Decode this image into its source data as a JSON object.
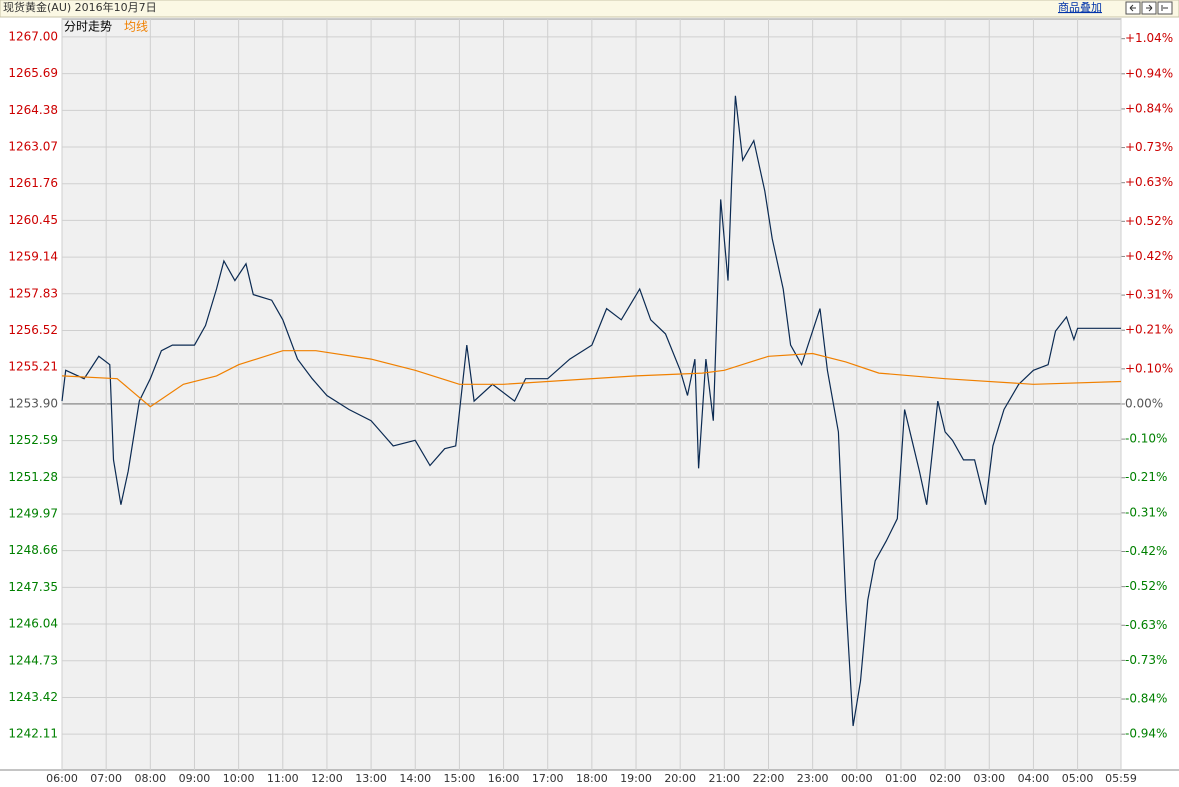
{
  "header": {
    "title": "现货黄金(AU) 2016年10月7日",
    "overlay_button": "商品叠加"
  },
  "chart_data": {
    "type": "line",
    "up_color": "#cc0000",
    "down_color": "#008000",
    "flat_color": "#555555",
    "ylim": [
      1240.83,
      1267.64
    ],
    "yticks": [
      {
        "value": 1267,
        "label": "1267.00"
      },
      1265.69,
      1264.38,
      1263.07,
      1261.76,
      1260.45,
      1259.14,
      1257.83,
      1256.52,
      1255.21,
      {
        "value": 1253.9,
        "label": "1253.90"
      },
      1252.59,
      1251.28,
      1249.97,
      1248.66,
      1247.35,
      1246.04,
      1244.73,
      1243.42,
      1242.11
    ],
    "y2lim": [
      -1.042,
      1.096
    ],
    "y2ticks": [
      {
        "value": 1.04,
        "label": "+1.04%"
      },
      {
        "value": 0.94,
        "label": "+0.94%"
      },
      {
        "value": 0.84,
        "label": "+0.84%"
      },
      {
        "value": 0.73,
        "label": "+0.73%"
      },
      {
        "value": 0.63,
        "label": "+0.63%"
      },
      {
        "value": 0.52,
        "label": "+0.52%"
      },
      {
        "value": 0.42,
        "label": "+0.42%"
      },
      {
        "value": 0.31,
        "label": "+0.31%"
      },
      {
        "value": 0.21,
        "label": "+0.21%"
      },
      {
        "value": 0.1,
        "label": "+0.10%"
      },
      {
        "value": 0,
        "label": "0.00%"
      },
      {
        "value": -0.1,
        "label": "-0.10%"
      },
      {
        "value": -0.21,
        "label": "-0.21%"
      },
      {
        "value": -0.31,
        "label": "-0.31%"
      },
      {
        "value": -0.42,
        "label": "-0.42%"
      },
      {
        "value": -0.52,
        "label": "-0.52%"
      },
      {
        "value": -0.63,
        "label": "-0.63%"
      },
      {
        "value": -0.73,
        "label": "-0.73%"
      },
      {
        "value": -0.84,
        "label": "-0.84%"
      },
      {
        "value": -0.94,
        "label": "-0.94%"
      }
    ],
    "xticks": [
      "06:00",
      "07:00",
      "08:00",
      "09:00",
      "10:00",
      "11:00",
      "12:00",
      "13:00",
      "14:00",
      "15:00",
      "16:00",
      "17:00",
      "18:00",
      "19:00",
      "20:00",
      "21:00",
      "22:00",
      "23:00",
      "00:00",
      "01:00",
      "02:00",
      "03:00",
      "04:00",
      "05:00",
      "05:59"
    ],
    "grid": true,
    "series": [
      {
        "name": "分时走势",
        "color": "#0b2a52",
        "x": [
          "06:00",
          "06:05",
          "06:30",
          "06:50",
          "07:05",
          "07:10",
          "07:20",
          "07:30",
          "07:45",
          "08:00",
          "08:15",
          "08:30",
          "09:00",
          "09:15",
          "09:30",
          "09:40",
          "09:55",
          "10:10",
          "10:20",
          "10:45",
          "11:00",
          "11:20",
          "11:40",
          "12:00",
          "12:30",
          "13:00",
          "13:30",
          "14:00",
          "14:20",
          "14:40",
          "14:55",
          "15:10",
          "15:20",
          "15:45",
          "16:15",
          "16:30",
          "17:00",
          "17:30",
          "18:00",
          "18:20",
          "18:40",
          "19:05",
          "19:20",
          "19:40",
          "20:00",
          "20:10",
          "20:20",
          "20:25",
          "20:35",
          "20:45",
          "20:55",
          "21:05",
          "21:10",
          "21:15",
          "21:25",
          "21:40",
          "21:55",
          "22:05",
          "22:20",
          "22:30",
          "22:45",
          "23:00",
          "23:10",
          "23:20",
          "23:35",
          "23:45",
          "23:55",
          "00:05",
          "00:15",
          "00:25",
          "00:40",
          "00:55",
          "01:05",
          "01:15",
          "01:25",
          "01:35",
          "01:50",
          "02:00",
          "02:10",
          "02:25",
          "02:40",
          "02:55",
          "03:05",
          "03:20",
          "03:40",
          "04:00",
          "04:20",
          "04:30",
          "04:45",
          "04:55",
          "05:00",
          "05:59"
        ],
        "values": [
          1254.0,
          1255.1,
          1254.8,
          1255.6,
          1255.3,
          1251.9,
          1250.3,
          1251.5,
          1254.0,
          1254.8,
          1255.8,
          1256.0,
          1256.0,
          1256.7,
          1258.0,
          1259.0,
          1258.3,
          1258.9,
          1257.8,
          1257.6,
          1256.9,
          1255.5,
          1254.8,
          1254.2,
          1253.7,
          1253.3,
          1252.4,
          1252.6,
          1251.7,
          1252.3,
          1252.4,
          1256.0,
          1254.0,
          1254.6,
          1254.0,
          1254.8,
          1254.8,
          1255.5,
          1256.0,
          1257.3,
          1256.9,
          1258.0,
          1256.9,
          1256.4,
          1255.1,
          1254.2,
          1255.5,
          1251.6,
          1255.5,
          1253.3,
          1261.2,
          1258.3,
          1261.9,
          1264.9,
          1262.6,
          1263.3,
          1261.5,
          1259.8,
          1258.0,
          1256.0,
          1255.3,
          1256.5,
          1257.3,
          1255.1,
          1252.9,
          1246.9,
          1242.4,
          1244.0,
          1246.9,
          1248.3,
          1249.0,
          1249.8,
          1253.7,
          1252.6,
          1251.5,
          1250.3,
          1254.0,
          1252.9,
          1252.6,
          1251.9,
          1251.9,
          1250.3,
          1252.4,
          1253.7,
          1254.6,
          1255.1,
          1255.3,
          1256.5,
          1257.0,
          1256.2,
          1256.6,
          1256.6
        ]
      },
      {
        "name": "均线",
        "color": "#f08000",
        "x": [
          "06:00",
          "07:15",
          "08:00",
          "08:45",
          "09:30",
          "10:00",
          "11:00",
          "11:45",
          "13:00",
          "14:00",
          "15:00",
          "16:00",
          "17:00",
          "19:00",
          "20:30",
          "21:00",
          "22:00",
          "23:00",
          "23:45",
          "00:30",
          "02:00",
          "04:00",
          "05:59"
        ],
        "values": [
          1254.9,
          1254.8,
          1253.8,
          1254.6,
          1254.9,
          1255.3,
          1255.8,
          1255.8,
          1255.5,
          1255.1,
          1254.6,
          1254.6,
          1254.7,
          1254.9,
          1255.0,
          1255.1,
          1255.6,
          1255.7,
          1255.4,
          1255.0,
          1254.8,
          1254.6,
          1254.7
        ]
      }
    ]
  }
}
